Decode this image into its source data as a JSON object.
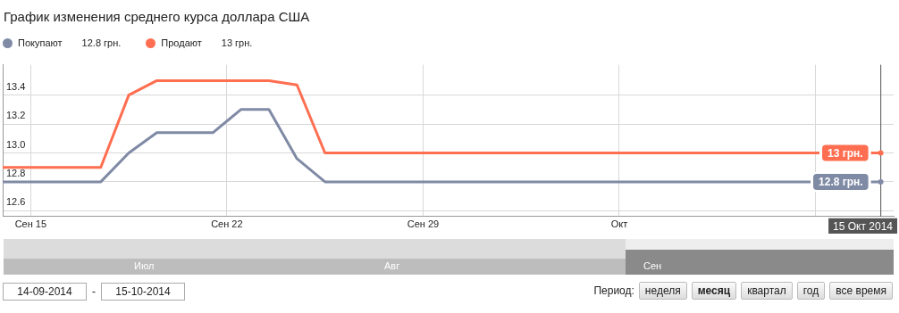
{
  "chart_data": {
    "type": "line",
    "title": "График изменения среднего курса доллара США",
    "x": [
      "2014-09-14",
      "2014-09-17T12:00",
      "2014-09-18T12:00",
      "2014-09-19T12:00",
      "2014-09-21T12:00",
      "2014-09-22T12:00",
      "2014-09-23T12:00",
      "2014-09-24T12:00",
      "2014-09-25T12:00",
      "2014-10-15T08:00"
    ],
    "series": [
      {
        "name": "Покупают",
        "color": "#7f8aa5",
        "values": [
          12.8,
          12.8,
          13.0,
          13.14,
          13.14,
          13.3,
          13.3,
          12.96,
          12.8,
          12.8
        ],
        "value_labels": [
          null,
          null,
          null,
          null,
          null,
          null,
          null,
          null,
          null,
          "12.8 грн."
        ]
      },
      {
        "name": "Продают",
        "color": "#ff6e50",
        "values": [
          12.9,
          12.9,
          13.4,
          13.5,
          13.5,
          13.5,
          13.5,
          13.47,
          13.0,
          13.0
        ],
        "value_labels": [
          null,
          null,
          null,
          null,
          null,
          null,
          null,
          null,
          null,
          "13 грн."
        ]
      }
    ],
    "xlim": [
      "2014-09-14",
      "2014-10-15T19:00"
    ],
    "xticks": [
      {
        "value": "2014-09-15",
        "label": "Сен 15"
      },
      {
        "value": "2014-09-22",
        "label": "Сен 22"
      },
      {
        "value": "2014-09-29",
        "label": "Сен 29"
      },
      {
        "value": "2014-10-06",
        "label": "Окт"
      },
      {
        "value": "2014-10-13",
        "label": null
      }
    ],
    "ylim": [
      12.56,
      13.61
    ],
    "yticks": [
      {
        "value": 12.6,
        "label": "12.6"
      },
      {
        "value": 12.8,
        "label": "12.8"
      },
      {
        "value": 13.0,
        "label": "13.0"
      },
      {
        "value": 13.2,
        "label": "13.2"
      },
      {
        "value": 13.4,
        "label": "13.4"
      }
    ],
    "grid": true,
    "legend": "top left",
    "marker": "none",
    "line_style": "solid",
    "ref_lines": [
      {
        "axis": "x",
        "value": "2014-10-15T08:00",
        "label": "15 Окт 2014",
        "color": "#555555"
      }
    ],
    "annotations": [
      "Июл",
      "Авг",
      "Сен",
      "14-09-2014",
      "-",
      "15-10-2014",
      "Период:",
      "неделя",
      "месяц",
      "квартал",
      "год",
      "все время"
    ]
  }
}
